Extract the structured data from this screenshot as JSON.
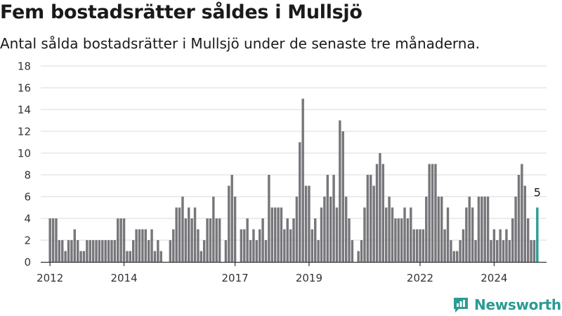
{
  "title": "Fem bostadsrätter såldes i Mullsjö",
  "subtitle": "Antal sålda bostadsrätter i Mullsjö under de senaste tre månaderna.",
  "brand": {
    "name": "Newsworthy",
    "icon": "newsworthy-logo-icon"
  },
  "colors": {
    "bar": "#77767b",
    "highlight": "#2a9d96",
    "grid": "#d9d9d9",
    "axis": "#333333"
  },
  "chart_data": {
    "type": "bar",
    "title": "Fem bostadsrätter såldes i Mullsjö",
    "subtitle": "Antal sålda bostadsrätter i Mullsjö under de senaste tre månaderna.",
    "xlabel": "",
    "ylabel": "",
    "ylim": [
      0,
      18
    ],
    "yticks": [
      0,
      2,
      4,
      6,
      8,
      10,
      12,
      14,
      16,
      18
    ],
    "xticks": [
      "2012",
      "2014",
      "2017",
      "2019",
      "2022",
      "2024"
    ],
    "xrange": [
      "2011-10",
      "2025-06"
    ],
    "grid": true,
    "highlight_label": "5",
    "months": [
      "2012-01",
      "2012-02",
      "2012-03",
      "2012-04",
      "2012-05",
      "2012-06",
      "2012-07",
      "2012-08",
      "2012-09",
      "2012-10",
      "2012-11",
      "2012-12",
      "2013-01",
      "2013-02",
      "2013-03",
      "2013-04",
      "2013-05",
      "2013-06",
      "2013-07",
      "2013-08",
      "2013-09",
      "2013-10",
      "2013-11",
      "2013-12",
      "2014-01",
      "2014-02",
      "2014-03",
      "2014-04",
      "2014-05",
      "2014-06",
      "2014-07",
      "2014-08",
      "2014-09",
      "2014-10",
      "2014-11",
      "2014-12",
      "2015-01",
      "2015-02",
      "2015-03",
      "2015-04",
      "2015-05",
      "2015-06",
      "2015-07",
      "2015-08",
      "2015-09",
      "2015-10",
      "2015-11",
      "2015-12",
      "2016-01",
      "2016-02",
      "2016-03",
      "2016-04",
      "2016-05",
      "2016-06",
      "2016-07",
      "2016-08",
      "2016-09",
      "2016-10",
      "2016-11",
      "2016-12",
      "2017-01",
      "2017-02",
      "2017-03",
      "2017-04",
      "2017-05",
      "2017-06",
      "2017-07",
      "2017-08",
      "2017-09",
      "2017-10",
      "2017-11",
      "2017-12",
      "2018-01",
      "2018-02",
      "2018-03",
      "2018-04",
      "2018-05",
      "2018-06",
      "2018-07",
      "2018-08",
      "2018-09",
      "2018-10",
      "2018-11",
      "2018-12",
      "2019-01",
      "2019-02",
      "2019-03",
      "2019-04",
      "2019-05",
      "2019-06",
      "2019-07",
      "2019-08",
      "2019-09",
      "2019-10",
      "2019-11",
      "2019-12",
      "2020-01",
      "2020-02",
      "2020-03",
      "2020-04",
      "2020-05",
      "2020-06",
      "2020-07",
      "2020-08",
      "2020-09",
      "2020-10",
      "2020-11",
      "2020-12",
      "2021-01",
      "2021-02",
      "2021-03",
      "2021-04",
      "2021-05",
      "2021-06",
      "2021-07",
      "2021-08",
      "2021-09",
      "2021-10",
      "2021-11",
      "2021-12",
      "2022-01",
      "2022-02",
      "2022-03",
      "2022-04",
      "2022-05",
      "2022-06",
      "2022-07",
      "2022-08",
      "2022-09",
      "2022-10",
      "2022-11",
      "2022-12",
      "2023-01",
      "2023-02",
      "2023-03",
      "2023-04",
      "2023-05",
      "2023-06",
      "2023-07",
      "2023-08",
      "2023-09",
      "2023-10",
      "2023-11",
      "2023-12",
      "2024-01",
      "2024-02",
      "2024-03",
      "2024-04",
      "2024-05",
      "2024-06",
      "2024-07",
      "2024-08",
      "2024-09",
      "2024-10",
      "2024-11",
      "2024-12",
      "2025-01",
      "2025-02",
      "2025-03"
    ],
    "values": [
      4,
      4,
      4,
      2,
      2,
      1,
      2,
      2,
      3,
      2,
      1,
      1,
      2,
      2,
      2,
      2,
      2,
      2,
      2,
      2,
      2,
      2,
      4,
      4,
      4,
      1,
      1,
      2,
      3,
      3,
      3,
      3,
      2,
      3,
      1,
      2,
      1,
      0,
      0,
      2,
      3,
      5,
      5,
      6,
      4,
      5,
      4,
      5,
      3,
      1,
      2,
      4,
      4,
      6,
      4,
      4,
      0,
      2,
      7,
      8,
      6,
      0,
      3,
      3,
      4,
      2,
      3,
      2,
      3,
      4,
      2,
      8,
      5,
      5,
      5,
      5,
      3,
      4,
      3,
      4,
      6,
      11,
      15,
      7,
      7,
      3,
      4,
      2,
      5,
      6,
      8,
      6,
      8,
      5,
      13,
      12,
      6,
      4,
      2,
      0,
      1,
      2,
      5,
      8,
      8,
      7,
      9,
      10,
      9,
      5,
      6,
      5,
      4,
      4,
      4,
      5,
      4,
      5,
      3,
      3,
      3,
      3,
      6,
      9,
      9,
      9,
      6,
      6,
      3,
      5,
      2,
      1,
      1,
      2,
      3,
      5,
      6,
      5,
      2,
      6,
      6,
      6,
      6,
      2,
      3,
      2,
      3,
      2,
      3,
      2,
      4,
      6,
      8,
      9,
      7,
      4,
      2,
      2,
      5
    ]
  }
}
